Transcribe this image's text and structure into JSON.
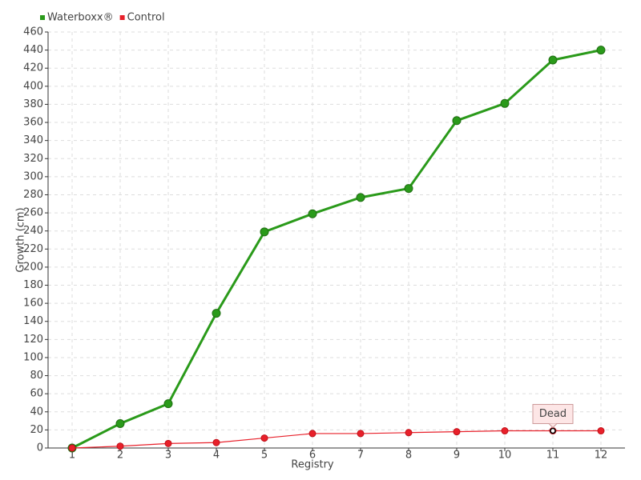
{
  "chart_data": {
    "type": "line",
    "x_label": "Registry",
    "y_label": "Growth (cm)",
    "categories": [
      "1",
      "2",
      "3",
      "4",
      "5",
      "6",
      "7",
      "8",
      "9",
      "10",
      "11",
      "12"
    ],
    "series": [
      {
        "name": "Waterboxx®",
        "color": "#2a9a1a",
        "values": [
          0,
          27,
          49,
          149,
          239,
          259,
          277,
          287,
          362,
          381,
          429,
          440
        ]
      },
      {
        "name": "Control",
        "color": "#e8202a",
        "values": [
          0,
          2,
          5,
          6,
          11,
          16,
          16,
          17,
          18,
          19,
          19,
          19
        ]
      }
    ],
    "ylim": [
      0,
      460
    ],
    "yticks": [
      0,
      20,
      40,
      60,
      80,
      100,
      120,
      140,
      160,
      180,
      200,
      220,
      240,
      260,
      280,
      300,
      320,
      340,
      360,
      380,
      400,
      420,
      440,
      460
    ],
    "grid": true,
    "legend": "top-left",
    "annotations": [
      {
        "text": "Dead",
        "series": "Control",
        "category": "11"
      }
    ]
  }
}
